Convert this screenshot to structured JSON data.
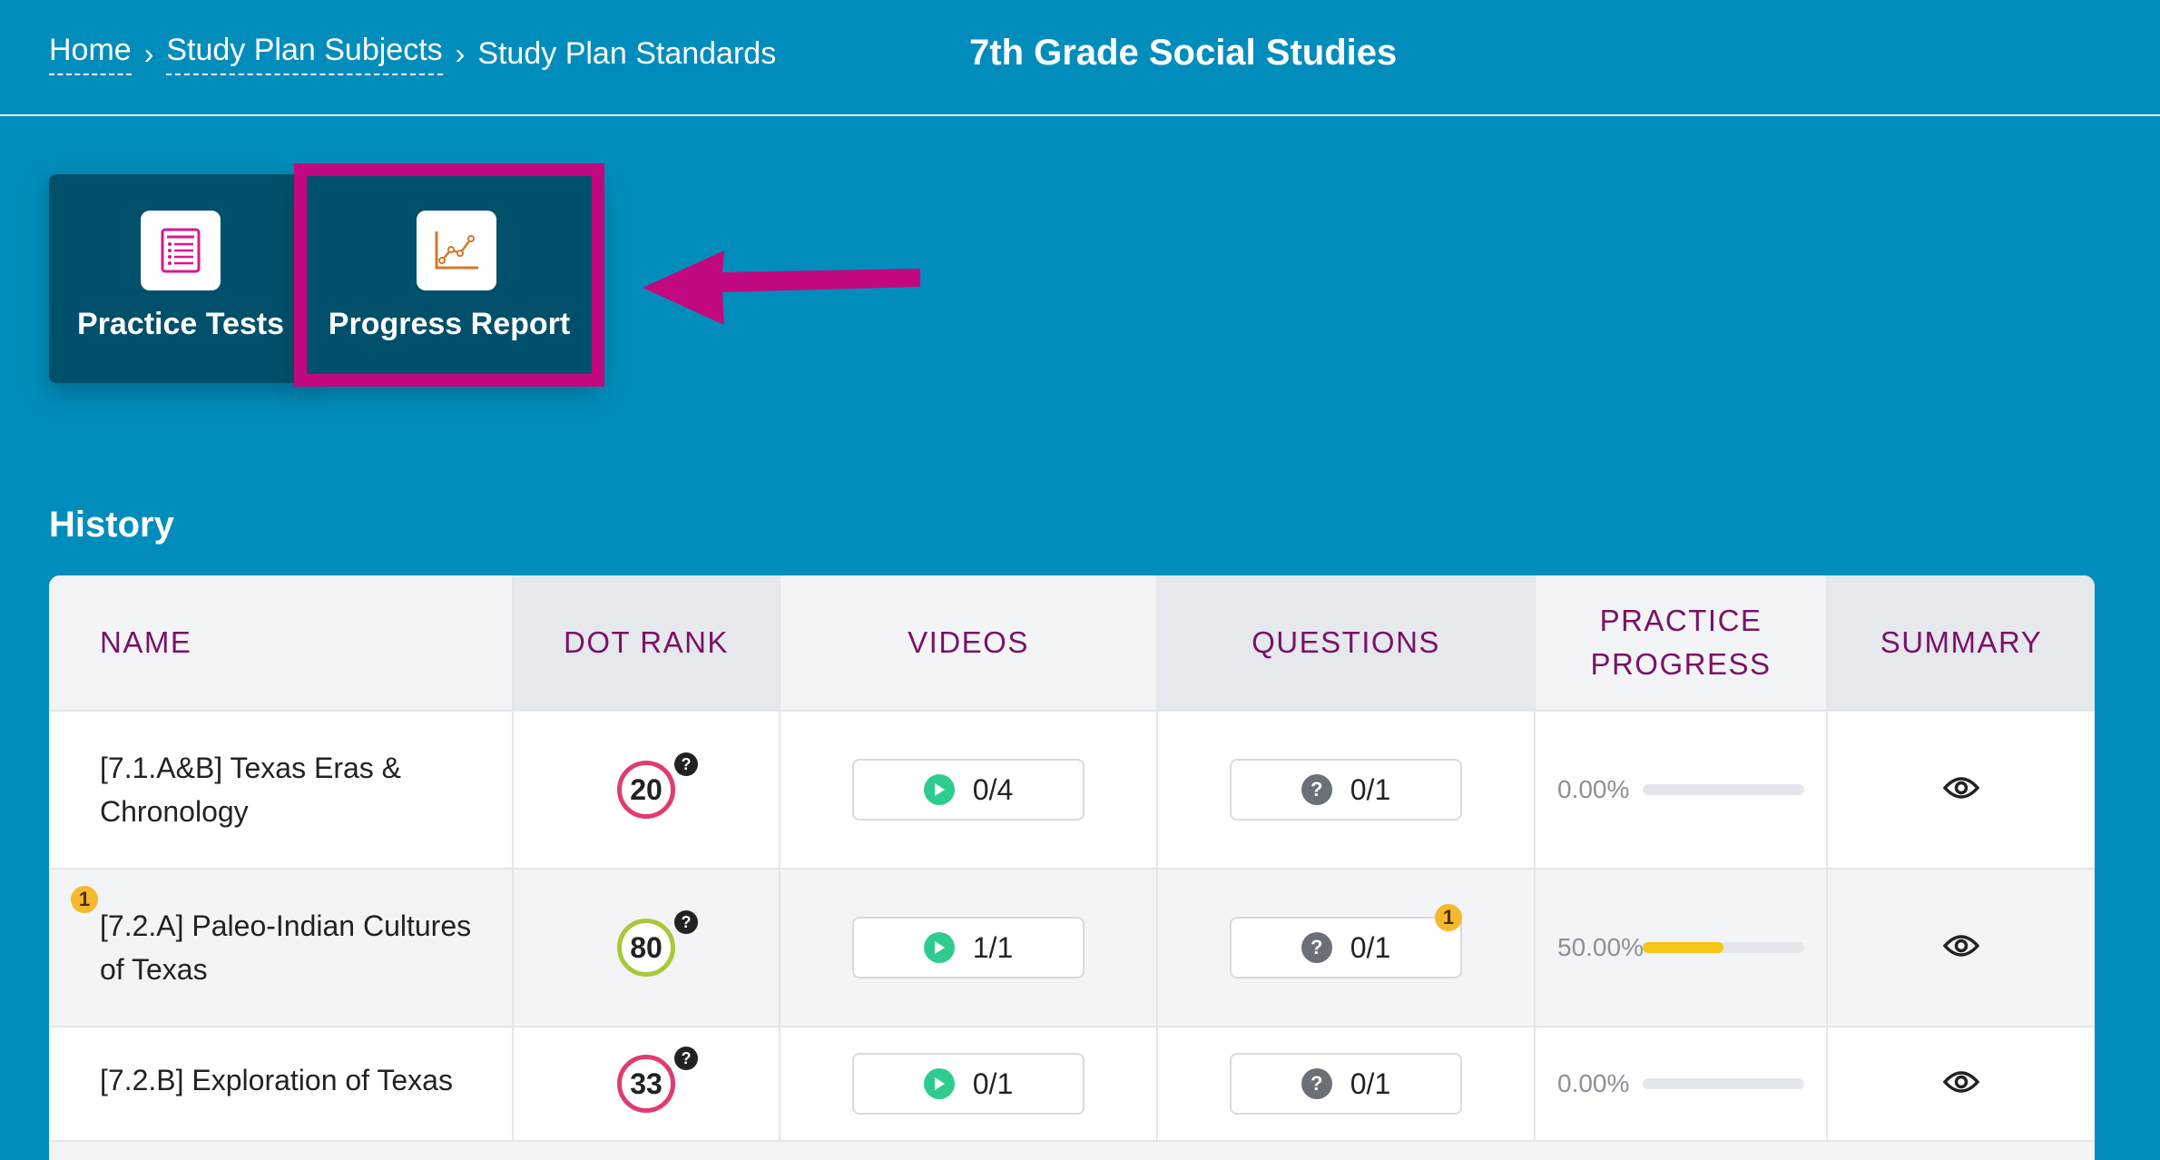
{
  "breadcrumb": {
    "items": [
      {
        "label": "Home"
      },
      {
        "label": "Study Plan Subjects"
      }
    ],
    "current": "Study Plan Standards",
    "separator": "›"
  },
  "page_title": "7th Grade Social Studies",
  "actions": {
    "practice_tests": {
      "label": "Practice Tests",
      "icon": "list-document-icon"
    },
    "progress_report": {
      "label": "Progress Report",
      "icon": "line-chart-icon"
    }
  },
  "annotation": {
    "highlight_color": "#c2087e",
    "arrow_icon": "arrow-left-icon"
  },
  "section_title": "History",
  "table": {
    "headers": {
      "name": "NAME",
      "dot_rank": "DOT RANK",
      "videos": "VIDEOS",
      "questions": "QUESTIONS",
      "practice_progress_1": "PRACTICE",
      "practice_progress_2": "PROGRESS",
      "summary": "SUMMARY"
    },
    "rows": [
      {
        "name_line1": "[7.1.A&B] Texas Eras &",
        "name_line2": "Chronology",
        "dot_rank": "20",
        "dot_rank_color": "#e03c6e",
        "help": "?",
        "videos": "0/4",
        "questions": "0/1",
        "progress_label": "0.00%",
        "progress_value": 0,
        "summary_icon": "eye-icon"
      },
      {
        "badge": "1",
        "name_line1": "[7.2.A] Paleo-Indian Cultures",
        "name_line2": "of Texas",
        "dot_rank": "80",
        "dot_rank_color": "#a8c83a",
        "help": "?",
        "videos": "1/1",
        "questions": "0/1",
        "questions_badge": "1",
        "progress_label": "50.00%",
        "progress_value": 0.5,
        "summary_icon": "eye-icon"
      },
      {
        "name_line1": "[7.2.B] Exploration of Texas",
        "dot_rank": "33",
        "dot_rank_color": "#e03c6e",
        "help": "?",
        "videos": "0/1",
        "questions": "0/1",
        "progress_label": "0.00%",
        "progress_value": 0,
        "summary_icon": "eye-icon"
      }
    ]
  }
}
